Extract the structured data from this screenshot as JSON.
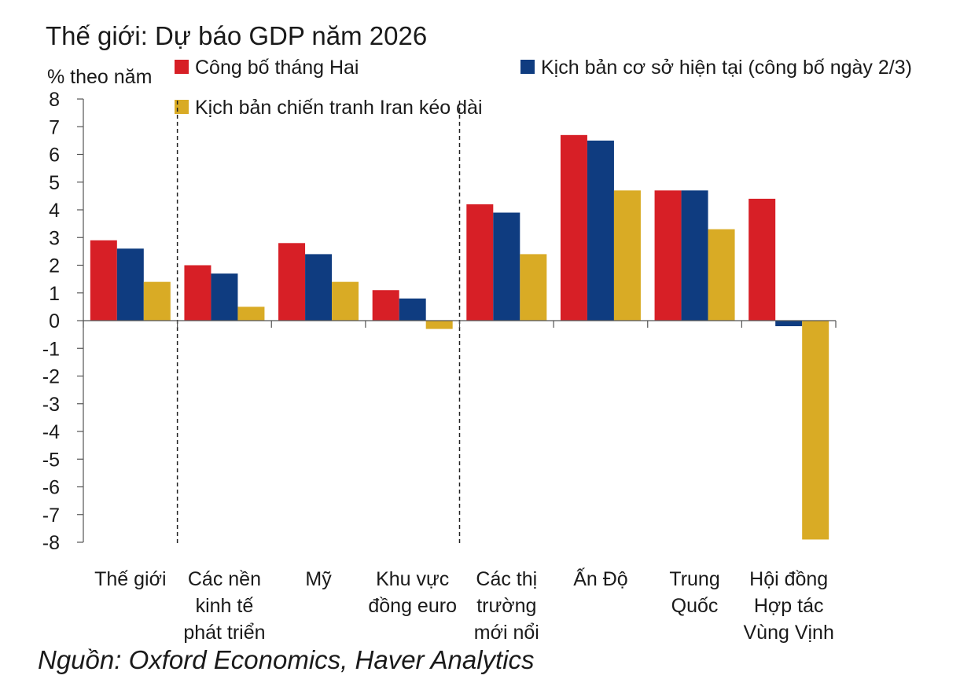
{
  "chart_data": {
    "type": "bar",
    "title": "Thế giới: Dự báo GDP năm 2026",
    "ylabel": "% theo năm",
    "ylim": [
      -8,
      8
    ],
    "yticks": [
      8,
      7,
      6,
      5,
      4,
      3,
      2,
      1,
      0,
      -1,
      -2,
      -3,
      -4,
      -5,
      -6,
      -7,
      -8
    ],
    "grid": false,
    "legend_position": "top",
    "categories": [
      [
        "Thế giới"
      ],
      [
        "Các nền",
        "kinh tế",
        "phát triển"
      ],
      [
        "Mỹ"
      ],
      [
        "Khu vực",
        "đồng euro"
      ],
      [
        "Các thị",
        "trường",
        "mới nổi"
      ],
      [
        "Ấn Độ"
      ],
      [
        "Trung",
        "Quốc"
      ],
      [
        "Hội đồng",
        "Hợp tác",
        "Vùng Vịnh"
      ]
    ],
    "series": [
      {
        "name": "Công bố tháng Hai",
        "color": "#d71f26",
        "values": [
          2.9,
          2.0,
          2.8,
          1.1,
          4.2,
          6.7,
          4.7,
          4.4
        ]
      },
      {
        "name": "Kịch bản cơ sở hiện tại (công bố ngày 2/3)",
        "color": "#0f3c80",
        "values": [
          2.6,
          1.7,
          2.4,
          0.8,
          3.9,
          6.5,
          4.7,
          -0.2
        ]
      },
      {
        "name": "Kịch bản chiến tranh Iran kéo dài",
        "color": "#d9ab25",
        "values": [
          1.4,
          0.5,
          1.4,
          -0.3,
          2.4,
          4.7,
          3.3,
          -7.9
        ]
      }
    ],
    "separators_after_category": [
      0,
      3
    ],
    "source": "Nguồn: Oxford Economics, Haver Analytics"
  }
}
